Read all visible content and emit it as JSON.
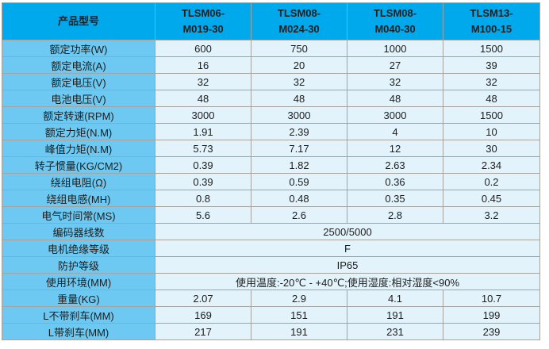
{
  "colors": {
    "header_bg": "#00A8EC",
    "label_bg": "#6DC9F1",
    "cell_bg": "#E2F3FB",
    "border": "#A6A29E",
    "header_text": "#FFFFFF",
    "body_text": "#1D1D1D"
  },
  "table": {
    "corner_label": "产品型号",
    "models": [
      {
        "line1": "TLSM06-",
        "line2": "M019-30"
      },
      {
        "line1": "TLSM08-",
        "line2": "M024-30"
      },
      {
        "line1": "TLSM08-",
        "line2": "M040-30"
      },
      {
        "line1": "TLSM13-",
        "line2": "M100-15"
      }
    ],
    "rows": [
      {
        "label": "额定功率(W)",
        "values": [
          "600",
          "750",
          "1000",
          "1500"
        ]
      },
      {
        "label": "额定电流(A)",
        "values": [
          "16",
          "20",
          "27",
          "39"
        ]
      },
      {
        "label": "额定电压(V)",
        "values": [
          "32",
          "32",
          "32",
          "32"
        ]
      },
      {
        "label": "电池电压(V)",
        "values": [
          "48",
          "48",
          "48",
          "48"
        ]
      },
      {
        "label": "额定转速(RPM)",
        "values": [
          "3000",
          "3000",
          "3000",
          "1500"
        ]
      },
      {
        "label": "额定力矩(N.M)",
        "values": [
          "1.91",
          "2.39",
          "4",
          "10"
        ]
      },
      {
        "label": "峰值力矩(N.M)",
        "values": [
          "5.73",
          "7.17",
          "12",
          "30"
        ]
      },
      {
        "label": "转子惯量(KG/CM2)",
        "values": [
          "0.39",
          "1.82",
          "2.63",
          "2.34"
        ]
      },
      {
        "label": "绕组电阻(Ω)",
        "values": [
          "0.39",
          "0.59",
          "0.36",
          "0.2"
        ]
      },
      {
        "label": "绕组电感(MH)",
        "values": [
          "0.8",
          "0.48",
          "0.35",
          "0.45"
        ]
      },
      {
        "label": "电气时间常(MS)",
        "values": [
          "5.6",
          "2.6",
          "2.8",
          "3.2"
        ]
      },
      {
        "label": "编码器线数",
        "merged": "2500/5000"
      },
      {
        "label": "电机绝缘等级",
        "merged": "F"
      },
      {
        "label": "防护等级",
        "merged": "IP65"
      },
      {
        "label": "使用环境(MM)",
        "merged": "使用温度:-20℃ - +40℃;使用湿度:相对湿度<90%"
      },
      {
        "label": "重量(KG)",
        "values": [
          "2.07",
          "2.9",
          "4.1",
          "10.7"
        ]
      },
      {
        "label": "L不带刹车(MM)",
        "values": [
          "169",
          "151",
          "191",
          "199"
        ]
      },
      {
        "label": "L带刹车(MM)",
        "values": [
          "217",
          "191",
          "231",
          "239"
        ]
      }
    ]
  }
}
